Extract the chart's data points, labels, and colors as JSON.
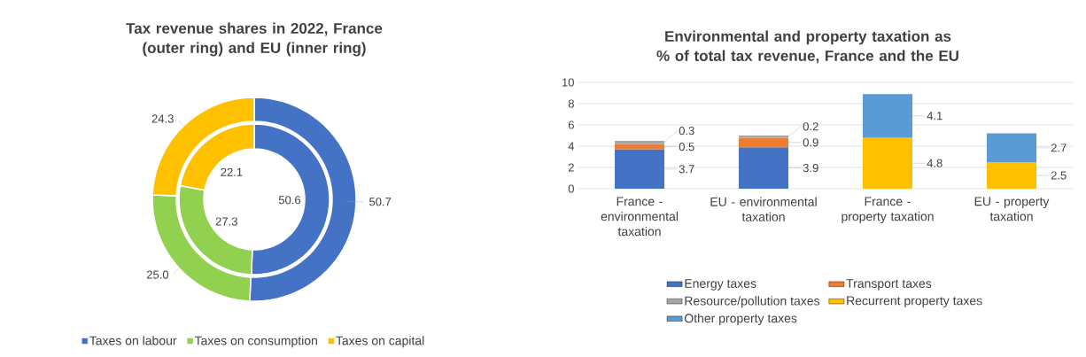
{
  "chart_data": [
    {
      "type": "donut",
      "title": "Tax revenue shares in 2022, France (outer ring) and EU (inner ring)",
      "categories": [
        "Taxes on labour",
        "Taxes on consumption",
        "Taxes on capital"
      ],
      "colors": [
        "#4472c4",
        "#92d050",
        "#ffc000"
      ],
      "series": [
        {
          "values": [
            50.7,
            25.0,
            24.3
          ],
          "value_labels": [
            "50.7",
            "25.0",
            "24.3"
          ]
        },
        {
          "values": [
            50.6,
            27.3,
            22.1
          ],
          "value_labels": [
            "50.6",
            "27.3",
            "22.1"
          ]
        }
      ],
      "legend": "bottom"
    },
    {
      "type": "bar",
      "title": "Environmental and property taxation as % of total tax revenue, France and the EU",
      "categories": [
        "France - environmental taxation",
        "EU - environmental taxation",
        "France - property taxation",
        "EU - property taxation"
      ],
      "stacked": true,
      "series": [
        {
          "name": "Energy taxes",
          "color": "#4472c4",
          "values": [
            3.7,
            3.9,
            null,
            null
          ]
        },
        {
          "name": "Transport taxes",
          "color": "#ed7d31",
          "values": [
            0.5,
            0.9,
            null,
            null
          ]
        },
        {
          "name": "Resource/pollution taxes",
          "color": "#a5a5a5",
          "values": [
            0.3,
            0.2,
            null,
            null
          ]
        },
        {
          "name": "Recurrent property taxes",
          "color": "#ffc000",
          "values": [
            null,
            null,
            4.8,
            2.5
          ]
        },
        {
          "name": "Other property taxes",
          "color": "#5b9bd5",
          "values": [
            null,
            null,
            4.1,
            2.7
          ]
        }
      ],
      "ylim": [
        0,
        10
      ],
      "yticks": [
        0,
        2,
        4,
        6,
        8,
        10
      ],
      "grid": "y",
      "data_labels": true,
      "legend": "bottom"
    }
  ]
}
